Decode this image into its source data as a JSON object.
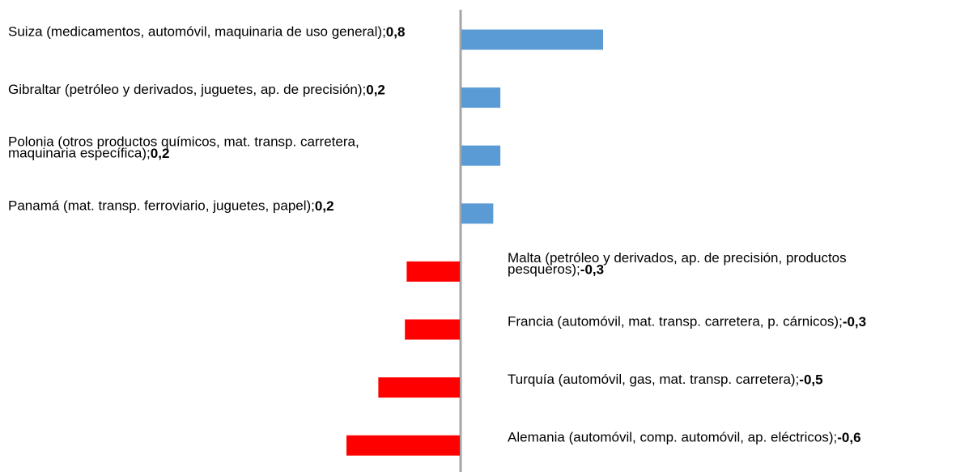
{
  "chart_data": {
    "type": "bar",
    "orientation": "horizontal",
    "categories": [
      "Suiza (medicamentos, automóvil, maquinaria de uso general);",
      "Gibraltar (petróleo y derivados, juguetes, ap. de precisión);",
      "Polonia (otros productos químicos, mat. transp. carretera, maquinaria específica);",
      "Panamá (mat. transp. ferroviario, juguetes, papel);",
      "Malta (petróleo y derivados, ap. de precisión, productos pesqueros);",
      "Francia (automóvil, mat. transp. carretera, p. cárnicos);",
      "Turquía (automóvil, gas, mat. transp. carretera);",
      "Alemania (automóvil, comp. automóvil, ap. eléctricos);"
    ],
    "values": [
      0.8,
      0.22,
      0.22,
      0.18,
      -0.3,
      -0.31,
      -0.46,
      -0.64
    ],
    "value_labels": [
      "0,8",
      "0,2",
      "0,2",
      "0,2",
      "-0,3",
      "-0,3",
      "-0,5",
      "-0,6"
    ],
    "positive_color": "#5b9bd5",
    "negative_color": "#ff0000"
  }
}
